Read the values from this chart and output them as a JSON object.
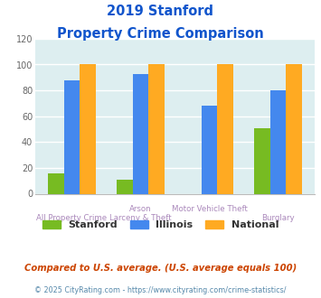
{
  "title_line1": "2019 Stanford",
  "title_line2": "Property Crime Comparison",
  "category_labels_row1": [
    "",
    "Arson",
    "Motor Vehicle Theft",
    ""
  ],
  "category_labels_row2": [
    "All Property Crime",
    "Larceny & Theft",
    "",
    "Burglary"
  ],
  "stanford_values": [
    16,
    11,
    0,
    51
  ],
  "illinois_values": [
    88,
    93,
    68,
    80
  ],
  "national_values": [
    100,
    100,
    100,
    100
  ],
  "stanford_color": "#77bb22",
  "illinois_color": "#4488ee",
  "national_color": "#ffaa22",
  "ylim": [
    0,
    120
  ],
  "yticks": [
    0,
    20,
    40,
    60,
    80,
    100,
    120
  ],
  "plot_bg_color": "#ddeef0",
  "title_color": "#1155cc",
  "label_color_upper": "#aa99bb",
  "label_color_lower": "#aa99bb",
  "footnote1": "Compared to U.S. average. (U.S. average equals 100)",
  "footnote2": "© 2025 CityRating.com - https://www.cityrating.com/crime-statistics/",
  "footnote1_color": "#cc4400",
  "footnote2_color": "#5588aa",
  "legend_labels": [
    "Stanford",
    "Illinois",
    "National"
  ]
}
